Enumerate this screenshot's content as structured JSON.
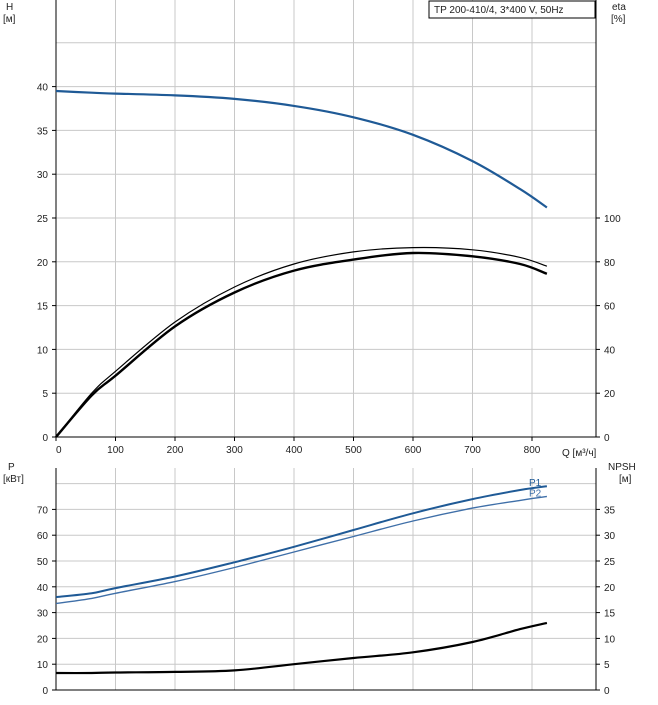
{
  "colors": {
    "head_curve": "#1f5a96",
    "eta_curve": "#000000",
    "p1_curve": "#1f5a96",
    "p2_curve": "#3f6fa8",
    "npsh_curve": "#000000",
    "grid": "#c8c8c8"
  },
  "chart_data": [
    {
      "type": "line",
      "panel": "top",
      "legend_box": "TP 200-410/4, 3*400 V, 50Hz",
      "y_left_label": "H",
      "y_left_unit": "[м]",
      "y_right_label": "eta",
      "y_right_unit": "[%]",
      "x_label": "Q [м³/ч]",
      "xlim": [
        0,
        840
      ],
      "ylim_left": [
        0,
        45
      ],
      "ylim_right": [
        0,
        100
      ],
      "x_ticks": [
        0,
        100,
        200,
        300,
        400,
        500,
        600,
        700,
        800
      ],
      "y_left_ticks": [
        0,
        5,
        10,
        15,
        20,
        25,
        30,
        35,
        40
      ],
      "y_right_ticks": [
        0,
        20,
        40,
        60,
        80,
        100
      ],
      "grid": true,
      "series": [
        {
          "name": "H",
          "axis": "left",
          "color_key": "head_curve",
          "x": [
            0,
            60,
            100,
            200,
            300,
            400,
            500,
            600,
            700,
            780,
            825
          ],
          "y": [
            39.5,
            39.3,
            39.2,
            39.0,
            38.6,
            37.8,
            36.5,
            34.5,
            31.5,
            28.3,
            26.2
          ]
        },
        {
          "name": "eta",
          "axis": "right",
          "color_key": "eta_curve",
          "x": [
            0,
            60,
            100,
            200,
            300,
            400,
            500,
            600,
            700,
            780,
            825
          ],
          "y": [
            0,
            19.0,
            28.0,
            50.5,
            66.0,
            76.0,
            81.0,
            84.0,
            82.5,
            79.0,
            74.5
          ]
        },
        {
          "name": "eta_thin",
          "axis": "right",
          "color_key": "eta_curve",
          "x": [
            0,
            60,
            100,
            200,
            300,
            400,
            500,
            600,
            700,
            780,
            825
          ],
          "y": [
            0,
            20.0,
            30.0,
            52.5,
            68.5,
            79.0,
            84.5,
            86.5,
            85.5,
            82.0,
            78.0
          ]
        }
      ]
    },
    {
      "type": "line",
      "panel": "bottom",
      "y_left_label": "P",
      "y_left_unit": "[кВт]",
      "y_right_label": "NPSH",
      "y_right_unit": "[м]",
      "xlim": [
        0,
        840
      ],
      "ylim_left": [
        0,
        80
      ],
      "ylim_right": [
        0,
        40
      ],
      "y_left_ticks": [
        0,
        10,
        20,
        30,
        40,
        50,
        60,
        70
      ],
      "y_right_ticks": [
        0,
        5,
        10,
        15,
        20,
        25,
        30,
        35
      ],
      "grid": true,
      "series": [
        {
          "name": "P1",
          "axis": "left",
          "color_key": "p1_curve",
          "x": [
            0,
            60,
            100,
            200,
            300,
            400,
            500,
            600,
            700,
            780,
            825
          ],
          "y": [
            36.0,
            37.5,
            39.5,
            44.0,
            49.5,
            55.5,
            62.0,
            68.5,
            74.0,
            77.5,
            79.0
          ]
        },
        {
          "name": "P2",
          "axis": "left",
          "color_key": "p2_curve",
          "x": [
            0,
            60,
            100,
            200,
            300,
            400,
            500,
            600,
            700,
            780,
            825
          ],
          "y": [
            33.5,
            35.5,
            37.5,
            42.0,
            47.5,
            53.5,
            59.5,
            65.5,
            70.5,
            73.5,
            75.0
          ]
        },
        {
          "name": "NPSH",
          "axis": "right",
          "color_key": "npsh_curve",
          "x": [
            0,
            60,
            100,
            200,
            300,
            400,
            500,
            600,
            700,
            780,
            825
          ],
          "y": [
            3.3,
            3.3,
            3.4,
            3.5,
            3.8,
            5.0,
            6.2,
            7.3,
            9.3,
            11.8,
            13.0
          ]
        }
      ],
      "curve_labels": [
        "P1",
        "P2"
      ]
    }
  ]
}
